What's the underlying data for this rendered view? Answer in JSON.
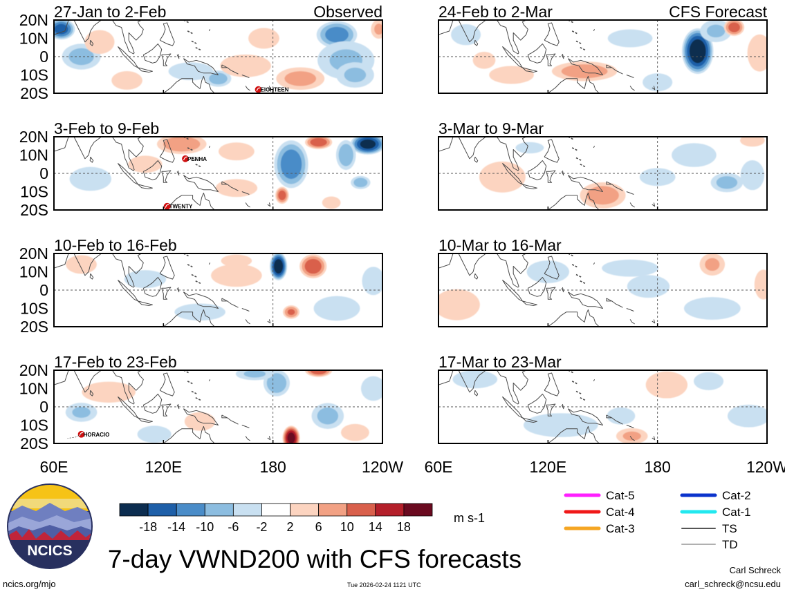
{
  "chart_data": {
    "type": "heatmap",
    "title": "7-day VWND200 with CFS forecasts",
    "variable": "VWND200",
    "units": "m s-1",
    "domain_lon": [
      60,
      240
    ],
    "domain_lat": [
      -20,
      20
    ],
    "x_tick_labels": [
      "60E",
      "120E",
      "180",
      "120W"
    ],
    "y_tick_labels": [
      "20N",
      "10N",
      "0",
      "10S",
      "20S"
    ],
    "colorbar": {
      "levels": [
        "-18",
        "-14",
        "-10",
        "-6",
        "-2",
        "2",
        "6",
        "10",
        "14",
        "18"
      ],
      "colors": [
        "#0c2d50",
        "#1e5fa8",
        "#4a8cc8",
        "#8cbde0",
        "#c9e0f1",
        "#ffffff",
        "#fcd4c0",
        "#f2a184",
        "#d9604c",
        "#b41f2a",
        "#6a0a20"
      ]
    },
    "columns": [
      {
        "label": "Observed"
      },
      {
        "label": "CFS Forecast"
      }
    ],
    "panels": [
      {
        "date_range": "27-Jan to 2-Feb",
        "source": "Observed",
        "blobs": [
          [
            64,
            15,
            8,
            6,
            -16
          ],
          [
            75,
            0,
            12,
            8,
            -7
          ],
          [
            215,
            12,
            12,
            8,
            -12
          ],
          [
            220,
            -2,
            18,
            12,
            -6
          ],
          [
            195,
            -12,
            15,
            7,
            7
          ],
          [
            225,
            -10,
            12,
            8,
            -6
          ],
          [
            150,
            -12,
            8,
            5,
            -8
          ],
          [
            100,
            -13,
            10,
            6,
            5
          ],
          [
            135,
            -8,
            15,
            6,
            -4
          ],
          [
            165,
            -5,
            18,
            8,
            3
          ],
          [
            85,
            8,
            10,
            8,
            4
          ],
          [
            238,
            15,
            5,
            6,
            6
          ],
          [
            175,
            10,
            12,
            8,
            2
          ]
        ],
        "storms": [
          {
            "name": "EIGHTEEN",
            "lon": 172,
            "lat": -18
          }
        ]
      },
      {
        "date_range": "3-Feb to 9-Feb",
        "source": "Observed",
        "blobs": [
          [
            232,
            16,
            10,
            6,
            -20
          ],
          [
            190,
            5,
            10,
            14,
            -13
          ],
          [
            220,
            10,
            6,
            9,
            -9
          ],
          [
            228,
            -5,
            6,
            4,
            -8
          ],
          [
            205,
            17,
            8,
            4,
            13
          ],
          [
            130,
            16,
            15,
            6,
            9
          ],
          [
            185,
            -12,
            4,
            5,
            12
          ],
          [
            80,
            -3,
            14,
            8,
            -4
          ],
          [
            160,
            -8,
            14,
            6,
            4
          ],
          [
            110,
            5,
            12,
            6,
            3
          ],
          [
            212,
            -16,
            6,
            4,
            5
          ],
          [
            160,
            12,
            12,
            6,
            4
          ]
        ],
        "storms": [
          {
            "name": "PENHA",
            "lon": 132,
            "lat": 8
          },
          {
            "name": "TWENTY",
            "lon": 122,
            "lat": -18
          }
        ]
      },
      {
        "date_range": "10-Feb to 16-Feb",
        "source": "Observed",
        "blobs": [
          [
            183,
            13,
            5,
            8,
            -22
          ],
          [
            202,
            13,
            8,
            7,
            13
          ],
          [
            190,
            -12,
            5,
            4,
            10
          ],
          [
            75,
            14,
            10,
            6,
            5
          ],
          [
            110,
            6,
            14,
            6,
            -4
          ],
          [
            215,
            -10,
            15,
            8,
            -5
          ],
          [
            140,
            -12,
            18,
            6,
            -3
          ],
          [
            235,
            5,
            8,
            10,
            -3
          ],
          [
            160,
            8,
            18,
            8,
            3
          ],
          [
            160,
            16,
            10,
            4,
            5
          ]
        ],
        "storms": []
      },
      {
        "date_range": "17-Feb to 23-Feb",
        "source": "Observed",
        "blobs": [
          [
            190,
            -17,
            5,
            7,
            20
          ],
          [
            182,
            13,
            8,
            8,
            -9
          ],
          [
            205,
            20,
            8,
            4,
            13
          ],
          [
            170,
            18,
            12,
            4,
            -6
          ],
          [
            90,
            8,
            18,
            7,
            4
          ],
          [
            75,
            -3,
            10,
            6,
            -6
          ],
          [
            140,
            -8,
            10,
            6,
            5
          ],
          [
            210,
            -5,
            10,
            8,
            -7
          ],
          [
            235,
            10,
            8,
            8,
            -5
          ],
          [
            225,
            -14,
            10,
            6,
            3
          ],
          [
            115,
            -15,
            12,
            6,
            -3
          ]
        ],
        "storms": [
          {
            "name": "HORACIO",
            "lon": 75,
            "lat": -15
          }
        ]
      },
      {
        "date_range": "24-Feb to 2-Mar",
        "source": "CFS Forecast",
        "blobs": [
          [
            202,
            3,
            9,
            13,
            -22
          ],
          [
            212,
            14,
            10,
            7,
            -6
          ],
          [
            222,
            16,
            6,
            5,
            12
          ],
          [
            236,
            2,
            8,
            12,
            5
          ],
          [
            140,
            -8,
            20,
            6,
            8
          ],
          [
            100,
            -10,
            15,
            6,
            4
          ],
          [
            75,
            12,
            10,
            7,
            -4
          ],
          [
            165,
            10,
            15,
            6,
            -4
          ],
          [
            180,
            -14,
            10,
            6,
            -4
          ],
          [
            85,
            -2,
            8,
            6,
            3
          ]
        ],
        "storms": []
      },
      {
        "date_range": "3-Mar to 9-Mar",
        "source": "CFS Forecast",
        "blobs": [
          [
            150,
            -12,
            14,
            8,
            8
          ],
          [
            218,
            -5,
            10,
            6,
            -7
          ],
          [
            232,
            -1,
            8,
            10,
            -4
          ],
          [
            95,
            -2,
            15,
            10,
            5
          ],
          [
            180,
            -2,
            12,
            6,
            -4
          ],
          [
            200,
            10,
            15,
            8,
            -4
          ],
          [
            232,
            18,
            8,
            4,
            5
          ],
          [
            110,
            14,
            10,
            4,
            -3
          ]
        ],
        "storms": []
      },
      {
        "date_range": "10-Mar to 16-Mar",
        "source": "CFS Forecast",
        "blobs": [
          [
            210,
            14,
            8,
            7,
            6
          ],
          [
            238,
            3,
            6,
            10,
            4
          ],
          [
            70,
            -8,
            15,
            10,
            5
          ],
          [
            120,
            10,
            15,
            8,
            -3
          ],
          [
            210,
            -10,
            20,
            8,
            -3
          ],
          [
            175,
            2,
            15,
            8,
            -3
          ],
          [
            165,
            12,
            20,
            6,
            -3
          ]
        ],
        "storms": []
      },
      {
        "date_range": "17-Mar to 23-Mar",
        "source": "CFS Forecast",
        "blobs": [
          [
            185,
            12,
            14,
            9,
            4
          ],
          [
            127,
            -10,
            25,
            8,
            -4
          ],
          [
            166,
            -16,
            10,
            5,
            6
          ],
          [
            80,
            15,
            15,
            6,
            -4
          ],
          [
            230,
            -5,
            15,
            8,
            -3
          ],
          [
            208,
            14,
            10,
            6,
            -4
          ],
          [
            160,
            -5,
            10,
            6,
            -3
          ]
        ],
        "storms": []
      }
    ],
    "storm_legend": [
      {
        "label": "Cat-5",
        "color": "#ff1fff"
      },
      {
        "label": "Cat-4",
        "color": "#f01818"
      },
      {
        "label": "Cat-3",
        "color": "#f5a623"
      },
      {
        "label": "Cat-2",
        "color": "#0b33cc"
      },
      {
        "label": "Cat-1",
        "color": "#22e8ef"
      },
      {
        "label": "TS",
        "color": "#555555"
      },
      {
        "label": "TD",
        "color": "#b0b0b0"
      }
    ]
  },
  "logo": {
    "text": "NCICS"
  },
  "footer": {
    "left_link": "ncics.org/mjo",
    "timestamp": "Tue 2026-02-24 1121 UTC",
    "author": "Carl Schreck",
    "email": "carl_schreck@ncsu.edu"
  }
}
